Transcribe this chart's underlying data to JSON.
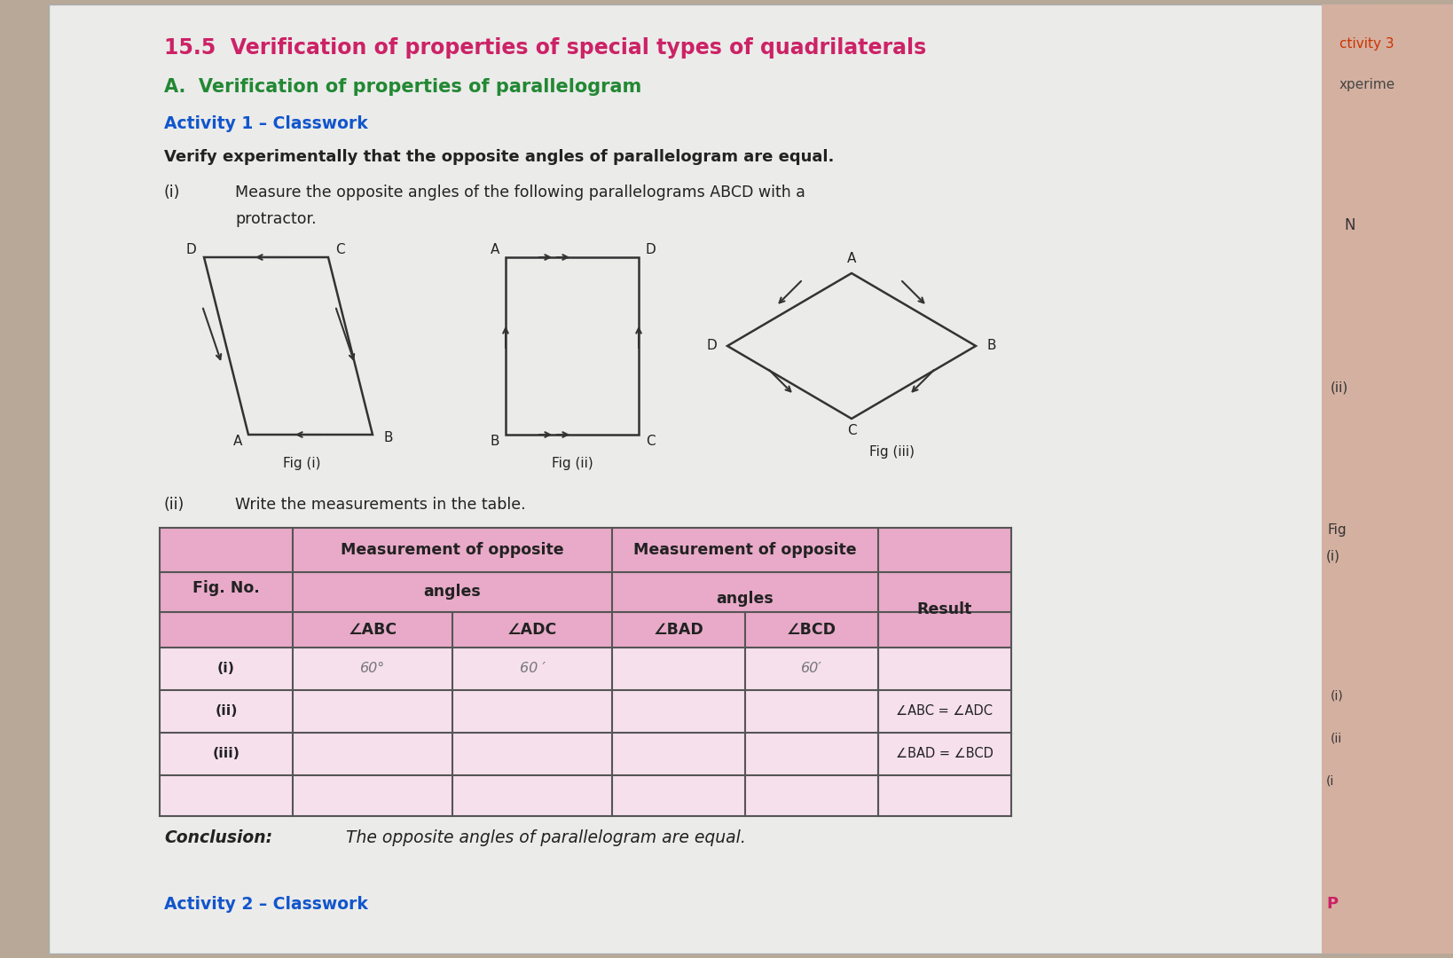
{
  "title_15_5": "15.5  Verification of properties of special types of quadrilaterals",
  "title_A": "A.  Verification of properties of parallelogram",
  "title_activity": "Activity 1 – Classwork",
  "verify_text": "Verify experimentally that the opposite angles of parallelogram are equal.",
  "title_color": "#cc2266",
  "title_A_color": "#228833",
  "activity_color": "#1155cc",
  "text_color": "#222222",
  "table_header_bg": "#e8aac8",
  "table_data_bg": "#f5e0ec",
  "table_border": "#666666",
  "conclusion_text": "The opposite angles of parallelogram are equal.",
  "activity2_text": "Activity 2 – Classwork",
  "page_bg": "#eeebe6",
  "right_strip_bg": "#d4b8a8",
  "result_text1": "∠ABC = ∠ADC",
  "result_text2": "∠BAD = ∠BCD"
}
